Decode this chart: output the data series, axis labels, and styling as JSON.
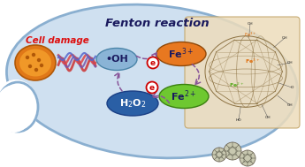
{
  "bg_color": "white",
  "cell_fill": "#cfe0f0",
  "cell_edge": "#8aafd0",
  "title": "Fenton reaction",
  "title_color": "#1a1a5e",
  "cell_damage_text": "Cell damage",
  "cell_damage_color": "#dd1111",
  "h2o2_color": "#2a5fa5",
  "h2o2_text": "H$_2$O$_2$",
  "oh_color": "#8ab4d6",
  "oh_text": "•OH",
  "fe2_color": "#6ec830",
  "fe2_text": "Fe$^{2+}$",
  "fe3_color": "#e87820",
  "fe3_text": "Fe$^{3+}$",
  "nanoparticle_bg": "#eddcbb",
  "arrow_color": "#885599",
  "electron_color": "#cc0000",
  "cage_color": "#8b7040"
}
